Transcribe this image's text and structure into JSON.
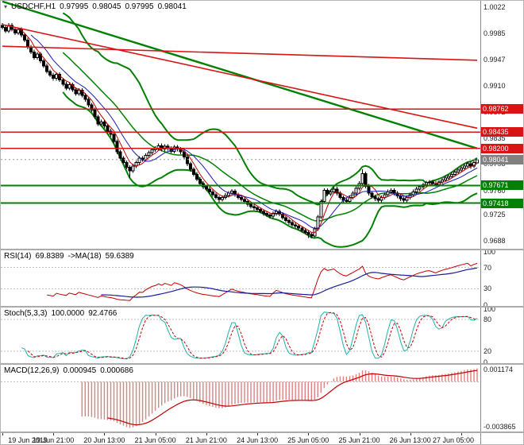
{
  "header": {
    "symbol": "USDCHF,H1",
    "open": "0.97995",
    "high": "0.98045",
    "low": "0.97995",
    "close": "0.98041"
  },
  "colors": {
    "background": "#ffffff",
    "bull": "#ffffff",
    "bear": "#000000",
    "candle_border": "#000000",
    "bollinger": "#018001",
    "ma_fast": "#c00000",
    "ma_slow": "#1a1ab4",
    "resistance": "#d81414",
    "support": "#018001",
    "current_price_badge": "#808080",
    "levels": "#bcbcbc",
    "scale_text": "#222222"
  },
  "chart_data": {
    "type": "candlestick",
    "symbol": "USDCHF",
    "timeframe": "H1",
    "title": "USDCHF,H1 0.97995 0.98045 0.97995 0.98041",
    "x_labels": [
      "19 Jun 2019",
      "19 Jun 21:00",
      "20 Jun 13:00",
      "21 Jun 05:00",
      "21 Jun 21:00",
      "24 Jun 13:00",
      "25 Jun 05:00",
      "25 Jun 21:00",
      "26 Jun 13:00",
      "27 Jun 05:00"
    ],
    "bars_per_label": 16,
    "price_range": [
      0.9676,
      1.0031
    ],
    "price_scale_ticks": [
      "1.0022",
      "0.9985",
      "0.9947",
      "0.9910",
      "0.9872",
      "0.9835",
      "0.9798",
      "0.9760",
      "0.9725",
      "0.9688"
    ],
    "candles": [
      [
        0.9996,
        0.9999,
        0.999,
        0.9993
      ],
      [
        0.9993,
        0.9996,
        0.9985,
        0.9988
      ],
      [
        0.9988,
        0.9999,
        0.9985,
        0.9996
      ],
      [
        0.9996,
        0.9999,
        0.9987,
        0.999
      ],
      [
        0.999,
        0.9993,
        0.9982,
        0.9985
      ],
      [
        0.9985,
        0.9993,
        0.9982,
        0.999
      ],
      [
        0.999,
        0.9993,
        0.9979,
        0.9982
      ],
      [
        0.9982,
        0.9985,
        0.9972,
        0.9975
      ],
      [
        0.9975,
        0.9978,
        0.9962,
        0.9965
      ],
      [
        0.9965,
        0.9968,
        0.9955,
        0.9958
      ],
      [
        0.9958,
        0.9961,
        0.9947,
        0.995
      ],
      [
        0.995,
        0.9958,
        0.9947,
        0.9955
      ],
      [
        0.9955,
        0.9958,
        0.9942,
        0.9945
      ],
      [
        0.9945,
        0.9948,
        0.9935,
        0.9938
      ],
      [
        0.9938,
        0.9941,
        0.9927,
        0.993
      ],
      [
        0.993,
        0.9933,
        0.9922,
        0.9925
      ],
      [
        0.9925,
        0.9928,
        0.9917,
        0.992
      ],
      [
        0.992,
        0.9929,
        0.9917,
        0.9926
      ],
      [
        0.9926,
        0.9929,
        0.9915,
        0.9918
      ],
      [
        0.9918,
        0.9921,
        0.9909,
        0.9912
      ],
      [
        0.9912,
        0.9915,
        0.9903,
        0.9906
      ],
      [
        0.9906,
        0.9914,
        0.9903,
        0.9911
      ],
      [
        0.9911,
        0.9914,
        0.9901,
        0.9904
      ],
      [
        0.9904,
        0.9907,
        0.9895,
        0.9898
      ],
      [
        0.9898,
        0.9906,
        0.9895,
        0.9903
      ],
      [
        0.9903,
        0.9906,
        0.9893,
        0.9896
      ],
      [
        0.9896,
        0.9899,
        0.9887,
        0.989
      ],
      [
        0.989,
        0.9893,
        0.9879,
        0.9882
      ],
      [
        0.9882,
        0.9885,
        0.9872,
        0.9875
      ],
      [
        0.9875,
        0.9878,
        0.9862,
        0.9865
      ],
      [
        0.9865,
        0.9868,
        0.9852,
        0.9855
      ],
      [
        0.9855,
        0.9861,
        0.9852,
        0.9858
      ],
      [
        0.9858,
        0.9861,
        0.9849,
        0.9852
      ],
      [
        0.9852,
        0.9855,
        0.9842,
        0.9845
      ],
      [
        0.9845,
        0.9848,
        0.9837,
        0.984
      ],
      [
        0.984,
        0.9843,
        0.9827,
        0.983
      ],
      [
        0.983,
        0.9833,
        0.9812,
        0.9815
      ],
      [
        0.9815,
        0.9818,
        0.9803,
        0.9806
      ],
      [
        0.9806,
        0.9809,
        0.9797,
        0.98
      ],
      [
        0.98,
        0.9803,
        0.979,
        0.9793
      ],
      [
        0.9793,
        0.9796,
        0.9778,
        0.9788
      ],
      [
        0.9788,
        0.9798,
        0.9785,
        0.9795
      ],
      [
        0.9795,
        0.9803,
        0.9792,
        0.98
      ],
      [
        0.98,
        0.9809,
        0.9797,
        0.9806
      ],
      [
        0.9806,
        0.9809,
        0.9801,
        0.9804
      ],
      [
        0.9804,
        0.9813,
        0.9801,
        0.981
      ],
      [
        0.981,
        0.9817,
        0.9807,
        0.9814
      ],
      [
        0.9814,
        0.9821,
        0.9811,
        0.9818
      ],
      [
        0.9818,
        0.9823,
        0.9815,
        0.982
      ],
      [
        0.982,
        0.9827,
        0.9817,
        0.9824
      ],
      [
        0.9824,
        0.9827,
        0.9816,
        0.9819
      ],
      [
        0.9819,
        0.9826,
        0.9816,
        0.9823
      ],
      [
        0.9823,
        0.9826,
        0.9817,
        0.982
      ],
      [
        0.982,
        0.9823,
        0.9813,
        0.9816
      ],
      [
        0.9816,
        0.9825,
        0.9813,
        0.9822
      ],
      [
        0.9822,
        0.9825,
        0.9816,
        0.9819
      ],
      [
        0.9819,
        0.9822,
        0.9812,
        0.9815
      ],
      [
        0.9815,
        0.9818,
        0.9805,
        0.9808
      ],
      [
        0.9808,
        0.9811,
        0.9795,
        0.9798
      ],
      [
        0.9798,
        0.9801,
        0.9787,
        0.979
      ],
      [
        0.979,
        0.9793,
        0.978,
        0.9783
      ],
      [
        0.9783,
        0.9786,
        0.9773,
        0.9776
      ],
      [
        0.9776,
        0.9779,
        0.9767,
        0.977
      ],
      [
        0.977,
        0.9773,
        0.9762,
        0.9765
      ],
      [
        0.9765,
        0.9768,
        0.9759,
        0.9762
      ],
      [
        0.9762,
        0.9765,
        0.9755,
        0.9758
      ],
      [
        0.9758,
        0.9761,
        0.9751,
        0.9754
      ],
      [
        0.9754,
        0.9757,
        0.9747,
        0.975
      ],
      [
        0.975,
        0.9753,
        0.9743,
        0.9747
      ],
      [
        0.9747,
        0.9753,
        0.9744,
        0.975
      ],
      [
        0.975,
        0.9756,
        0.9747,
        0.9753
      ],
      [
        0.9753,
        0.9759,
        0.975,
        0.9756
      ],
      [
        0.9756,
        0.9762,
        0.9753,
        0.9759
      ],
      [
        0.9759,
        0.9762,
        0.9751,
        0.9754
      ],
      [
        0.9754,
        0.9757,
        0.9747,
        0.975
      ],
      [
        0.975,
        0.9753,
        0.9744,
        0.9747
      ],
      [
        0.9747,
        0.975,
        0.9741,
        0.9744
      ],
      [
        0.9744,
        0.9747,
        0.9737,
        0.974
      ],
      [
        0.974,
        0.9743,
        0.9734,
        0.9737
      ],
      [
        0.9737,
        0.974,
        0.9732,
        0.9735
      ],
      [
        0.9735,
        0.9738,
        0.973,
        0.9733
      ],
      [
        0.9733,
        0.9736,
        0.9727,
        0.973
      ],
      [
        0.973,
        0.9733,
        0.9724,
        0.9727
      ],
      [
        0.9727,
        0.973,
        0.9722,
        0.9725
      ],
      [
        0.9725,
        0.9728,
        0.972,
        0.9723
      ],
      [
        0.9723,
        0.973,
        0.972,
        0.9727
      ],
      [
        0.9727,
        0.9733,
        0.9724,
        0.973
      ],
      [
        0.973,
        0.9733,
        0.9723,
        0.9726
      ],
      [
        0.9726,
        0.9729,
        0.9718,
        0.9721
      ],
      [
        0.9721,
        0.9724,
        0.9714,
        0.9717
      ],
      [
        0.9717,
        0.972,
        0.9711,
        0.9714
      ],
      [
        0.9714,
        0.9717,
        0.9708,
        0.9711
      ],
      [
        0.9711,
        0.9714,
        0.9706,
        0.9709
      ],
      [
        0.9709,
        0.9712,
        0.9703,
        0.9706
      ],
      [
        0.9706,
        0.9709,
        0.97,
        0.9703
      ],
      [
        0.9703,
        0.9706,
        0.9697,
        0.97
      ],
      [
        0.97,
        0.9703,
        0.9692,
        0.9697
      ],
      [
        0.9697,
        0.97,
        0.9692,
        0.9695
      ],
      [
        0.9695,
        0.9708,
        0.9693,
        0.9705
      ],
      [
        0.9705,
        0.9725,
        0.9702,
        0.9722
      ],
      [
        0.9722,
        0.9747,
        0.9719,
        0.9744
      ],
      [
        0.9744,
        0.9763,
        0.9741,
        0.976
      ],
      [
        0.976,
        0.9763,
        0.9752,
        0.9755
      ],
      [
        0.9755,
        0.9761,
        0.9752,
        0.9758
      ],
      [
        0.9758,
        0.9765,
        0.9755,
        0.9762
      ],
      [
        0.9762,
        0.9765,
        0.9753,
        0.9756
      ],
      [
        0.9756,
        0.9759,
        0.9747,
        0.975
      ],
      [
        0.975,
        0.9753,
        0.9743,
        0.9746
      ],
      [
        0.9746,
        0.9749,
        0.9741,
        0.9744
      ],
      [
        0.9744,
        0.9753,
        0.9741,
        0.975
      ],
      [
        0.975,
        0.9759,
        0.9747,
        0.9756
      ],
      [
        0.9756,
        0.9766,
        0.9753,
        0.9763
      ],
      [
        0.9763,
        0.9773,
        0.976,
        0.977
      ],
      [
        0.977,
        0.979,
        0.9767,
        0.9784
      ],
      [
        0.9784,
        0.9787,
        0.9763,
        0.9766
      ],
      [
        0.9766,
        0.9769,
        0.9753,
        0.9756
      ],
      [
        0.9756,
        0.9759,
        0.9748,
        0.9751
      ],
      [
        0.9751,
        0.9754,
        0.9745,
        0.9748
      ],
      [
        0.9748,
        0.9751,
        0.9743,
        0.9746
      ],
      [
        0.9746,
        0.9753,
        0.9743,
        0.975
      ],
      [
        0.975,
        0.9757,
        0.9747,
        0.9754
      ],
      [
        0.9754,
        0.9761,
        0.9751,
        0.9758
      ],
      [
        0.9758,
        0.9763,
        0.9755,
        0.976
      ],
      [
        0.976,
        0.9763,
        0.9753,
        0.9756
      ],
      [
        0.9756,
        0.9759,
        0.9749,
        0.9752
      ],
      [
        0.9752,
        0.9755,
        0.9745,
        0.9748
      ],
      [
        0.9748,
        0.9751,
        0.9743,
        0.9746
      ],
      [
        0.9746,
        0.9753,
        0.9743,
        0.975
      ],
      [
        0.975,
        0.9757,
        0.9747,
        0.9754
      ],
      [
        0.9754,
        0.9761,
        0.9751,
        0.9758
      ],
      [
        0.9758,
        0.9765,
        0.9755,
        0.9762
      ],
      [
        0.9762,
        0.9768,
        0.9759,
        0.9765
      ],
      [
        0.9765,
        0.9771,
        0.9762,
        0.9768
      ],
      [
        0.9768,
        0.9774,
        0.9765,
        0.9771
      ],
      [
        0.9771,
        0.9775,
        0.9768,
        0.9772
      ],
      [
        0.9772,
        0.9775,
        0.9767,
        0.977
      ],
      [
        0.977,
        0.9773,
        0.9765,
        0.9768
      ],
      [
        0.9768,
        0.9775,
        0.9765,
        0.9772
      ],
      [
        0.9772,
        0.9778,
        0.9769,
        0.9775
      ],
      [
        0.9775,
        0.9781,
        0.9772,
        0.9778
      ],
      [
        0.9778,
        0.9783,
        0.9775,
        0.978
      ],
      [
        0.978,
        0.9786,
        0.9777,
        0.9783
      ],
      [
        0.9783,
        0.9789,
        0.978,
        0.9786
      ],
      [
        0.9786,
        0.9792,
        0.9783,
        0.9789
      ],
      [
        0.9789,
        0.9795,
        0.9786,
        0.9792
      ],
      [
        0.9792,
        0.9798,
        0.9789,
        0.9795
      ],
      [
        0.9795,
        0.9801,
        0.9792,
        0.9798
      ],
      [
        0.9798,
        0.9801,
        0.9791,
        0.9795
      ],
      [
        0.9795,
        0.9803,
        0.9792,
        0.98
      ],
      [
        0.97995,
        0.98045,
        0.97995,
        0.98041
      ]
    ],
    "horizontal_lines": [
      {
        "price": 0.98762,
        "label": "0.98762",
        "color": "#d81414",
        "role": "resistance",
        "width": 1.6
      },
      {
        "price": 0.98435,
        "label": "0.98435",
        "color": "#d81414",
        "role": "resistance",
        "width": 1.6
      },
      {
        "price": 0.982,
        "label": "0.98200",
        "color": "#d81414",
        "role": "resistance",
        "width": 1.6
      },
      {
        "price": 0.97671,
        "label": "0.97671",
        "color": "#018001",
        "role": "support",
        "width": 2
      },
      {
        "price": 0.97418,
        "label": "0.97418",
        "color": "#018001",
        "role": "support",
        "width": 2
      }
    ],
    "trend_lines": [
      {
        "from_bar": 0,
        "from_price": 1.003,
        "to_bar": 149,
        "to_price": 0.982,
        "color": "#018001",
        "width": 2.4,
        "name": "green-descending-trendline"
      },
      {
        "from_bar": 0,
        "from_price": 0.9997,
        "to_bar": 149,
        "to_price": 0.9849,
        "color": "#d81414",
        "width": 1.6,
        "name": "red-descending-trendline"
      },
      {
        "from_bar": 0,
        "from_price": 0.9966,
        "to_bar": 149,
        "to_price": 0.9946,
        "color": "#d81414",
        "width": 1.6,
        "name": "red-upper-trendline"
      }
    ],
    "current_price": {
      "value": 0.98041,
      "label": "0.98041"
    },
    "overlays": {
      "bollinger": {
        "period": 20,
        "deviation": 2,
        "color": "#018001"
      },
      "ma_fast": {
        "period": 5,
        "type": "sma",
        "color": "#c00000"
      },
      "ma_slow": {
        "period": 10,
        "type": "sma",
        "color": "#1a1ab4"
      }
    },
    "indicator_panels": [
      {
        "id": "rsi",
        "label": "RSI(14)",
        "value": "69.8389",
        "ma_label": "->MA(18)",
        "ma_value": "59.6389",
        "period": 14,
        "ma_period": 18,
        "levels": [
          70,
          30
        ],
        "scale_ticks": [
          100,
          70,
          30,
          0
        ],
        "line_color": "#c00000",
        "ma_color": "#1a1a9a"
      },
      {
        "id": "stochastic",
        "label": "Stoch(5,3,3)",
        "value": "100.0000",
        "signal_value": "92.4766",
        "k_period": 5,
        "d_period": 3,
        "slowing": 3,
        "levels": [
          80,
          20
        ],
        "scale_ticks": [
          100,
          80,
          20,
          0
        ],
        "k_color": "#20b2aa",
        "d_color": "#c00000"
      },
      {
        "id": "macd",
        "label": "MACD(12,26,9)",
        "value": "0.000945",
        "signal_value": "0.000686",
        "fast": 12,
        "slow": 26,
        "signal": 9,
        "scale_labels": [
          "0.001174",
          "-0.003865"
        ],
        "hist_color": "#de8181",
        "signal_color": "#c00000"
      }
    ]
  }
}
